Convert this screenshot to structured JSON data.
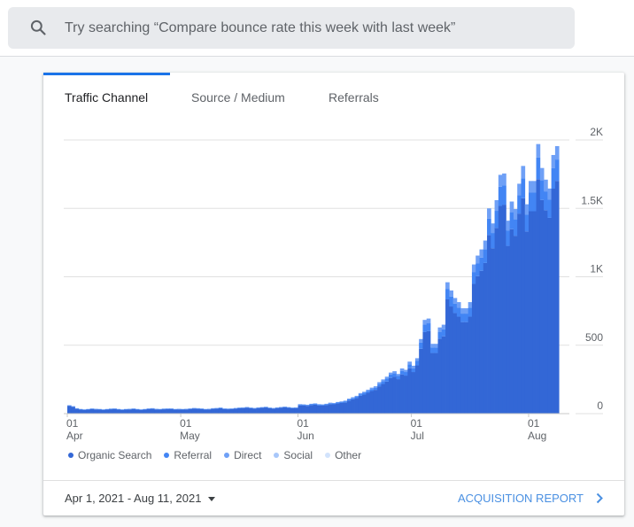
{
  "search": {
    "placeholder": "Try searching “Compare bounce rate this week with last week”",
    "icon": "search-icon"
  },
  "tabs": [
    {
      "label": "Traffic Channel",
      "active": true
    },
    {
      "label": "Source / Medium",
      "active": false
    },
    {
      "label": "Referrals",
      "active": false
    }
  ],
  "legend": [
    {
      "label": "Organic Search",
      "color": "#3367d6"
    },
    {
      "label": "Referral",
      "color": "#4285f4"
    },
    {
      "label": "Direct",
      "color": "#6fa0f6"
    },
    {
      "label": "Social",
      "color": "#a8c7fa"
    },
    {
      "label": "Other",
      "color": "#d2e3fc"
    }
  ],
  "footer": {
    "date_range": "Apr 1, 2021 - Aug 11, 2021",
    "report_link": "ACQUISITION REPORT"
  },
  "chart_data": {
    "type": "bar",
    "stacked": true,
    "x_start": "2021-04-01",
    "x_end": "2021-08-11",
    "x_ticks": [
      {
        "date": "2021-04-01",
        "day": "01",
        "month": "Apr"
      },
      {
        "date": "2021-05-01",
        "day": "01",
        "month": "May"
      },
      {
        "date": "2021-06-01",
        "day": "01",
        "month": "Jun"
      },
      {
        "date": "2021-07-01",
        "day": "01",
        "month": "Jul"
      },
      {
        "date": "2021-08-01",
        "day": "01",
        "month": "Aug"
      }
    ],
    "y_ticks": [
      {
        "v": 0,
        "label": "0"
      },
      {
        "v": 500,
        "label": "500"
      },
      {
        "v": 1000,
        "label": "1K"
      },
      {
        "v": 1500,
        "label": "1.5K"
      },
      {
        "v": 2000,
        "label": "2K"
      }
    ],
    "ylim": [
      0,
      2000
    ],
    "y_axis_side": "right",
    "grid": true,
    "legend_placement": "bottom-left",
    "series": [
      {
        "name": "Organic Search",
        "color": "#3367d6",
        "values": [
          57,
          50,
          35,
          29,
          27,
          29,
          33,
          31,
          29,
          27,
          29,
          32,
          34,
          29,
          27,
          29,
          31,
          33,
          29,
          27,
          29,
          34,
          35,
          31,
          29,
          32,
          33,
          34,
          29,
          31,
          29,
          31,
          34,
          37,
          35,
          33,
          29,
          31,
          35,
          37,
          39,
          34,
          32,
          34,
          37,
          39,
          41,
          44,
          39,
          37,
          41,
          43,
          45,
          39,
          37,
          41,
          44,
          47,
          43,
          39,
          41,
          60,
          60,
          57,
          62,
          65,
          60,
          60,
          62,
          70,
          68,
          74,
          78,
          82,
          95,
          104,
          113,
          130,
          139,
          152,
          165,
          174,
          200,
          217,
          234,
          261,
          269,
          252,
          287,
          278,
          331,
          304,
          353,
          474,
          596,
          604,
          443,
          443,
          548,
          565,
          835,
          783,
          735,
          709,
          669,
          669,
          709,
          948,
          1005,
          1044,
          1101,
          1305,
          1209,
          1357,
          1518,
          1527,
          1226,
          1348,
          1300,
          1462,
          1574,
          1331,
          1479,
          1479,
          1713,
          1561,
          1487,
          1431,
          1644,
          1701
        ]
      },
      {
        "name": "Referral",
        "color": "#4285f4",
        "values": [
          3,
          3,
          3,
          3,
          3,
          3,
          3,
          3,
          3,
          3,
          3,
          3,
          3,
          3,
          3,
          3,
          3,
          3,
          3,
          3,
          3,
          3,
          3,
          3,
          3,
          3,
          3,
          3,
          3,
          3,
          3,
          3,
          3,
          3,
          3,
          3,
          3,
          3,
          3,
          3,
          3,
          3,
          3,
          3,
          3,
          3,
          3,
          3,
          3,
          3,
          3,
          3,
          3,
          3,
          3,
          3,
          3,
          3,
          3,
          3,
          3,
          6,
          5,
          5,
          6,
          6,
          6,
          5,
          6,
          6,
          6,
          7,
          7,
          8,
          9,
          10,
          10,
          12,
          13,
          14,
          15,
          16,
          18,
          20,
          22,
          24,
          25,
          23,
          26,
          26,
          30,
          28,
          32,
          44,
          55,
          56,
          41,
          41,
          50,
          52,
          77,
          72,
          68,
          65,
          62,
          62,
          65,
          87,
          92,
          96,
          101,
          120,
          111,
          125,
          140,
          140,
          113,
          124,
          120,
          134,
          145,
          122,
          136,
          136,
          158,
          144,
          137,
          132,
          151,
          156
        ]
      },
      {
        "name": "Direct",
        "color": "#6fa0f6",
        "values": [
          2,
          2,
          2,
          2,
          2,
          2,
          2,
          2,
          2,
          2,
          2,
          2,
          2,
          2,
          2,
          2,
          2,
          2,
          2,
          2,
          2,
          2,
          2,
          2,
          2,
          2,
          2,
          2,
          2,
          2,
          2,
          2,
          2,
          2,
          2,
          2,
          2,
          2,
          2,
          2,
          2,
          2,
          2,
          2,
          2,
          2,
          2,
          2,
          2,
          2,
          2,
          2,
          2,
          2,
          2,
          2,
          2,
          2,
          2,
          2,
          2,
          4,
          3,
          3,
          4,
          4,
          4,
          3,
          4,
          4,
          4,
          4,
          5,
          5,
          6,
          6,
          7,
          8,
          8,
          9,
          10,
          10,
          12,
          13,
          14,
          15,
          16,
          15,
          17,
          16,
          19,
          18,
          20,
          27,
          34,
          35,
          26,
          26,
          32,
          33,
          48,
          45,
          42,
          41,
          39,
          39,
          41,
          55,
          58,
          60,
          63,
          75,
          70,
          78,
          87,
          88,
          71,
          78,
          75,
          84,
          91,
          77,
          85,
          85,
          99,
          90,
          86,
          82,
          95,
          98
        ]
      }
    ]
  }
}
